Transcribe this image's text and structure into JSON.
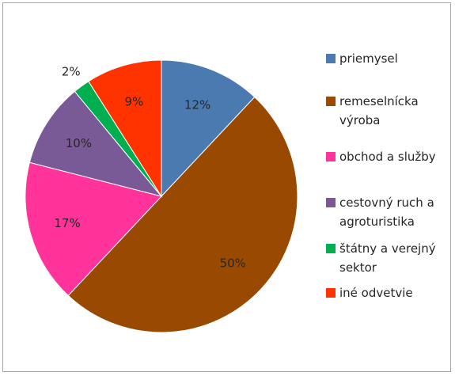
{
  "chart_data": {
    "type": "pie",
    "categories": [
      "priemysel",
      "remeselnícka výroba",
      "obchod a služby",
      "cestovný ruch a agroturistika",
      "štátny a verejný sektor",
      "iné odvetvie"
    ],
    "values": [
      12,
      50,
      17,
      10,
      2,
      9
    ],
    "value_labels": [
      "12%",
      "50%",
      "17%",
      "10%",
      "2%",
      "9%"
    ],
    "colors": [
      "#4a7ab0",
      "#994a00",
      "#ff3399",
      "#7a5a96",
      "#00b050",
      "#ff3300"
    ],
    "legend": "right"
  }
}
